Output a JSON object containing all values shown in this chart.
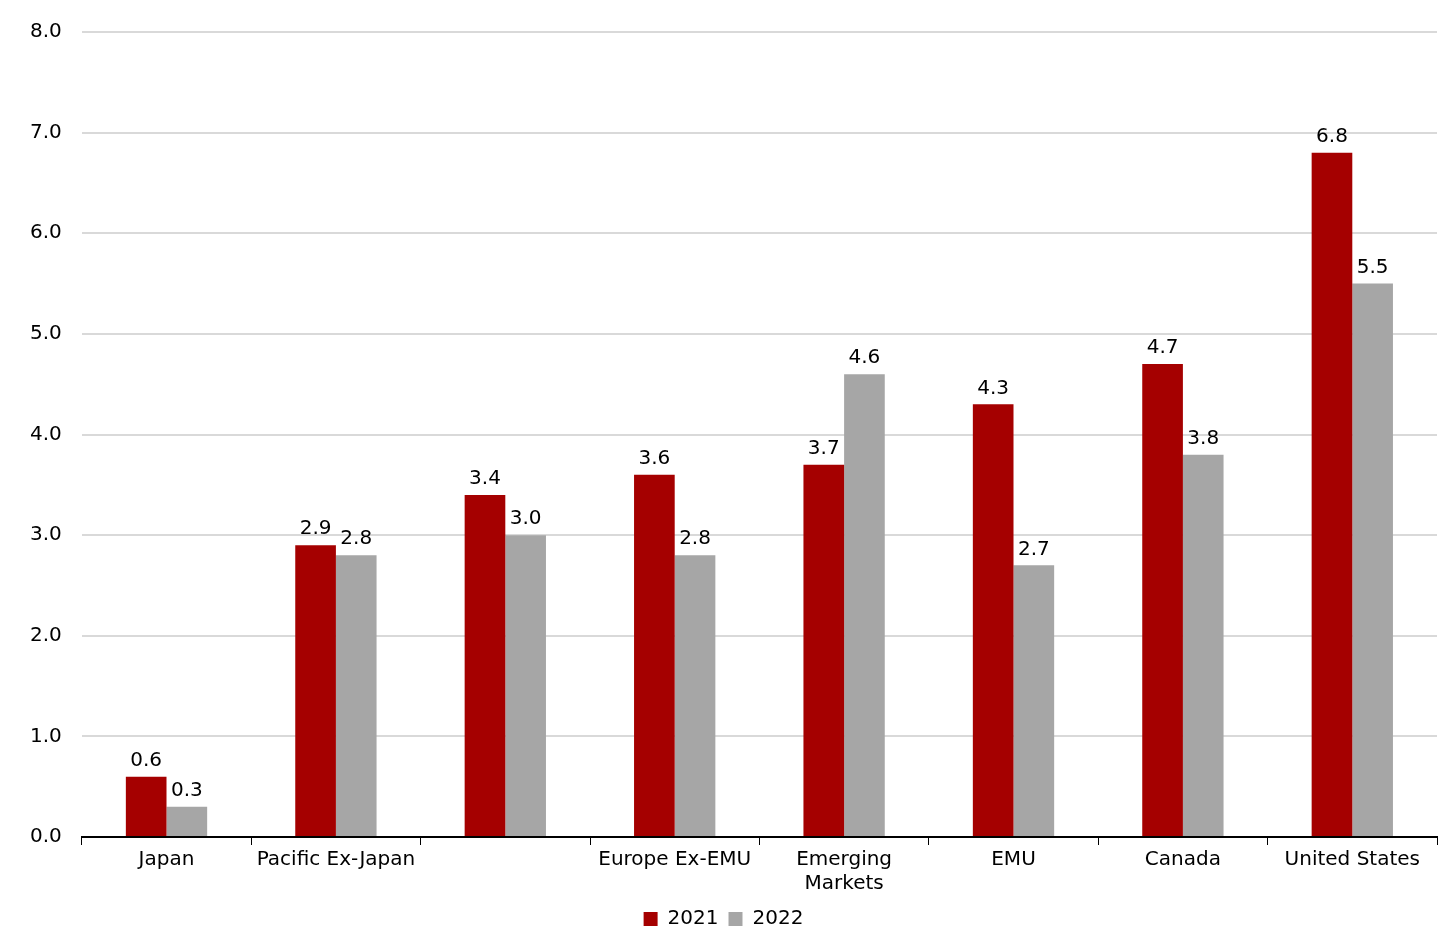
{
  "chart_data": {
    "type": "bar",
    "categories": [
      "Japan",
      "Pacific Ex-Japan",
      null,
      "Europe Ex-EMU",
      "Emerging Markets",
      "EMU",
      "Canada",
      "United States"
    ],
    "series": [
      {
        "name": "2021",
        "color": "#a50000",
        "values": [
          0.6,
          2.9,
          3.4,
          3.6,
          3.7,
          4.3,
          4.7,
          6.8
        ],
        "value_labels": [
          "0.6",
          "2.9",
          "3.4",
          "3.6",
          "3.7",
          "4.3",
          "4.7",
          "6.8"
        ]
      },
      {
        "name": "2022",
        "color": "#a6a6a6",
        "values": [
          0.3,
          2.8,
          3.0,
          2.8,
          4.6,
          2.7,
          3.8,
          5.5
        ],
        "value_labels": [
          "0.3",
          "2.8",
          "3.0",
          "2.8",
          "4.6",
          "2.7",
          "3.8",
          "5.5"
        ]
      }
    ],
    "ylim": [
      0,
      8
    ],
    "yticks": [
      {
        "value": 0,
        "label": "0.0"
      },
      {
        "value": 1,
        "label": "1.0"
      },
      {
        "value": 2,
        "label": "2.0"
      },
      {
        "value": 3,
        "label": "3.0"
      },
      {
        "value": 4,
        "label": "4.0"
      },
      {
        "value": 5,
        "label": "5.0"
      },
      {
        "value": 6,
        "label": "6.0"
      },
      {
        "value": 7,
        "label": "7.0"
      },
      {
        "value": 8,
        "label": "8.0"
      }
    ],
    "grid": "y",
    "legend": "bottom"
  }
}
